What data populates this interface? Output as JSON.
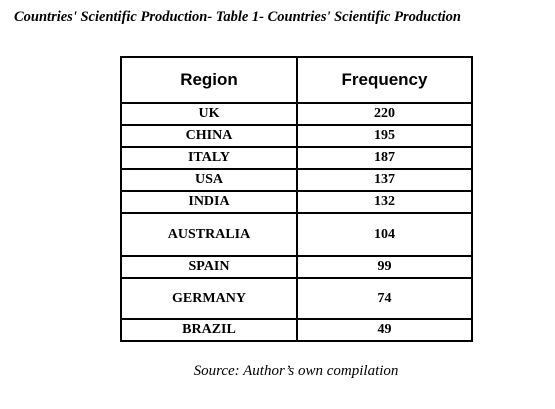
{
  "title": "Countries' Scientific Production- Table 1- Countries' Scientific Production",
  "table": {
    "header": [
      "Region",
      "Frequency"
    ],
    "rows": [
      [
        "UK",
        220
      ],
      [
        "CHINA",
        195
      ],
      [
        "ITALY",
        187
      ],
      [
        "USA",
        137
      ],
      [
        "INDIA",
        132
      ],
      [
        "AUSTRALIA",
        104
      ],
      [
        "SPAIN",
        99
      ],
      [
        "GERMANY",
        74
      ],
      [
        "BRAZIL",
        49
      ]
    ]
  },
  "source": "Source: Author’s own compilation"
}
